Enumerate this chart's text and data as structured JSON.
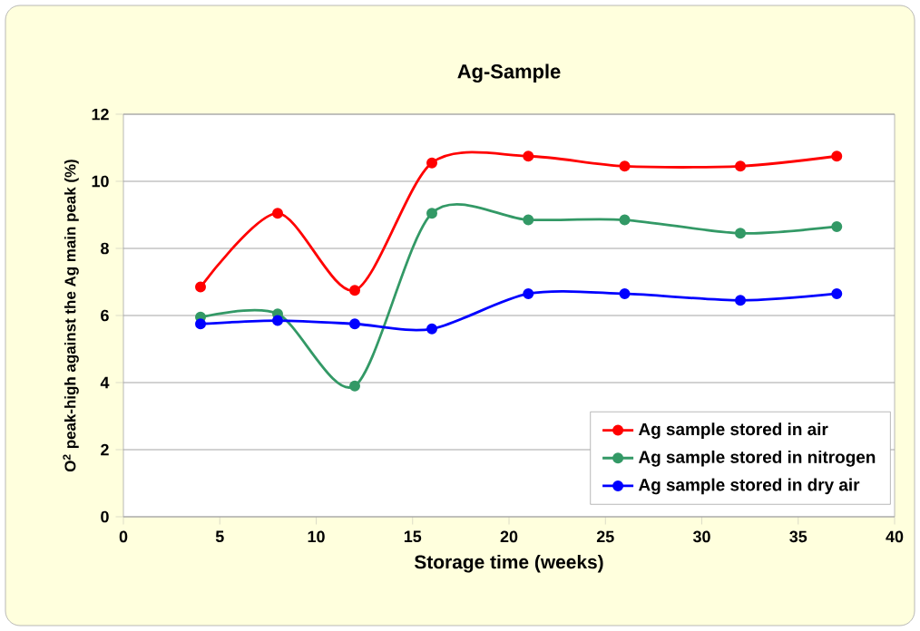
{
  "chart_data": {
    "type": "line",
    "title": "Ag-Sample",
    "xlabel": "Storage time (weeks)",
    "ylabel": "O$^{2}$ peak-high against the Ag main peak (%)",
    "x": [
      4,
      8,
      12,
      16,
      21,
      26,
      32,
      37
    ],
    "series": [
      {
        "name": "Ag sample stored in air",
        "color": "#ff0000",
        "values": [
          6.85,
          9.05,
          6.75,
          10.55,
          10.75,
          10.45,
          10.45,
          10.75
        ]
      },
      {
        "name": "Ag sample stored in nitrogen",
        "color": "#339966",
        "values": [
          5.95,
          6.05,
          3.9,
          9.05,
          8.85,
          8.85,
          8.45,
          8.65
        ]
      },
      {
        "name": "Ag sample stored in dry air",
        "color": "#0000ff",
        "values": [
          5.75,
          5.85,
          5.75,
          5.6,
          6.65,
          6.65,
          6.45,
          6.65
        ]
      }
    ],
    "xlim": [
      0,
      40
    ],
    "xticks": [
      0,
      5,
      10,
      15,
      20,
      25,
      30,
      35,
      40
    ],
    "ylim": [
      0,
      12
    ],
    "yticks": [
      0,
      2,
      4,
      6,
      8,
      10,
      12
    ],
    "grid": "y",
    "legend": "bottom right",
    "marker": "circle",
    "line_style": "solid"
  }
}
